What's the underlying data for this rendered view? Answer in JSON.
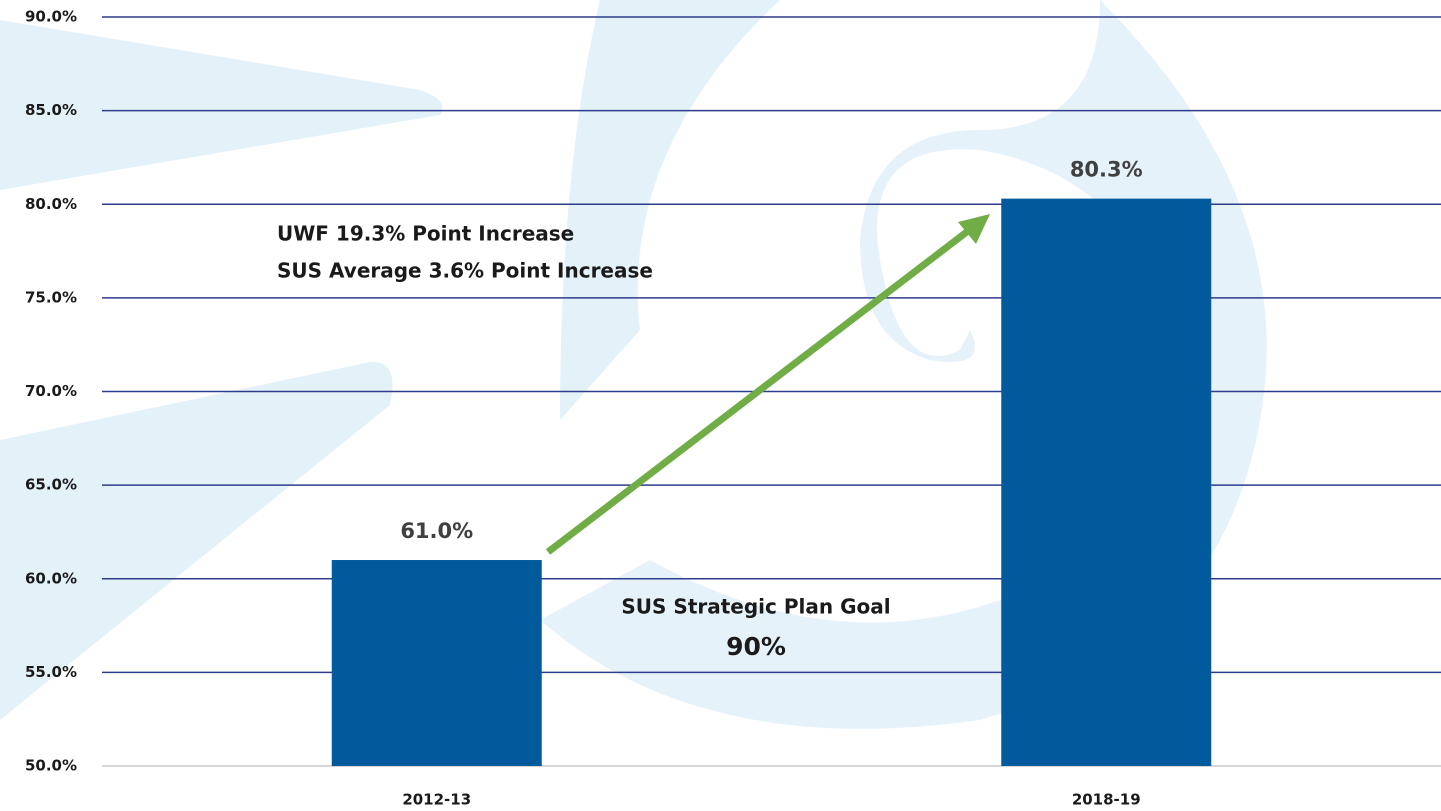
{
  "chart_data": {
    "type": "bar",
    "categories": [
      "2012-13",
      "2018-19"
    ],
    "values": [
      61.0,
      80.3
    ],
    "value_labels": [
      "61.0%",
      "80.3%"
    ],
    "color": "#005a9c",
    "ylim": [
      50,
      90
    ],
    "yticks": [
      {
        "value": 50,
        "label": "50.0%"
      },
      {
        "value": 55,
        "label": "55.0%"
      },
      {
        "value": 60,
        "label": "60.0%"
      },
      {
        "value": 65,
        "label": "65.0%"
      },
      {
        "value": 70,
        "label": "70.0%"
      },
      {
        "value": 75,
        "label": "75.0%"
      },
      {
        "value": 80,
        "label": "80.0%"
      },
      {
        "value": 85,
        "label": "85.0%"
      },
      {
        "value": 90,
        "label": "90.0%"
      }
    ],
    "grid": true,
    "annotations": [
      "UWF 19.3% Point Increase",
      "SUS Average 3.6% Point Increase",
      "SUS Strategic Plan Goal",
      "90%"
    ]
  }
}
